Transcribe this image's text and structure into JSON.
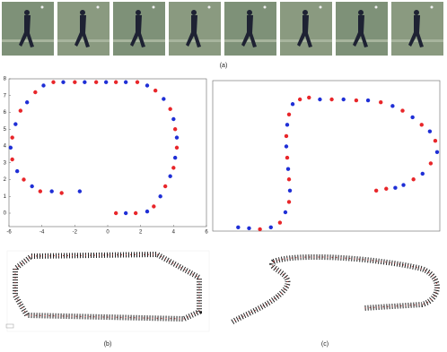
{
  "captions": [
    "(a)",
    "(b)",
    "(c)"
  ],
  "chart_data": [
    {
      "type": "scatter",
      "xlim": [
        -6,
        6
      ],
      "ylim": [
        -0.8,
        8
      ],
      "xticks": [
        -6,
        -4,
        -2,
        0,
        2,
        4,
        6
      ],
      "yticks": [
        0,
        1,
        2,
        3,
        4,
        5,
        6,
        7,
        8
      ],
      "series": [
        {
          "color": "#e8262a",
          "x": [
            0.5,
            1.7,
            2.8,
            3.5,
            4.0,
            4.2,
            4.1,
            3.8,
            2.9,
            1.8,
            0.5,
            -0.7,
            -2,
            -3.3,
            -4.4,
            -5.3,
            -5.8,
            -5.8,
            -5.1,
            -4.1,
            -2.8
          ],
          "y": [
            0,
            0,
            0.4,
            1.6,
            2.7,
            3.9,
            5.0,
            6.2,
            7.3,
            7.8,
            7.8,
            7.8,
            7.8,
            7.8,
            7.2,
            6.1,
            4.5,
            3.2,
            2.0,
            1.3,
            1.2
          ]
        },
        {
          "color": "#1f2fd6",
          "x": [
            1.1,
            2.4,
            3.2,
            3.8,
            4.1,
            4.2,
            4.0,
            3.4,
            2.4,
            1.1,
            -0.1,
            -1.4,
            -2.7,
            -3.9,
            -4.9,
            -5.6,
            -5.9,
            -5.5,
            -4.6,
            -3.4,
            -1.7
          ],
          "y": [
            0,
            0.1,
            1.0,
            2.2,
            3.3,
            4.5,
            5.6,
            6.8,
            7.6,
            7.8,
            7.8,
            7.8,
            7.8,
            7.6,
            6.6,
            5.3,
            3.9,
            2.5,
            1.6,
            1.3,
            1.3
          ]
        }
      ]
    },
    {
      "type": "scatter",
      "xlim": [
        0,
        25
      ],
      "ylim": [
        0,
        16
      ],
      "series": [
        {
          "color": "#e8262a",
          "x": [
            5.2,
            7.4,
            8.4,
            8.4,
            8.2,
            8.1,
            8.4,
            9.6,
            10.6,
            13.1,
            15.8,
            18.5,
            20.9,
            23.0,
            24.5,
            24.0,
            22.1,
            19.1,
            18.0
          ],
          "y": [
            0.2,
            0.9,
            3.1,
            5.5,
            7.8,
            10.1,
            12.4,
            14.0,
            14.2,
            14.0,
            13.9,
            13.7,
            12.8,
            11.3,
            9.6,
            7.2,
            5.5,
            4.5,
            4.3
          ]
        },
        {
          "color": "#1f2fd6",
          "x": [
            2.8,
            4.0,
            6.4,
            8.0,
            8.5,
            8.3,
            8.1,
            8.2,
            8.8,
            11.8,
            14.4,
            17.1,
            19.8,
            22.0,
            23.9,
            24.7,
            23.1,
            21.0,
            20.1
          ],
          "y": [
            0.4,
            0.3,
            0.4,
            2.0,
            4.3,
            6.6,
            9.0,
            11.3,
            13.5,
            14.0,
            14.0,
            13.9,
            13.3,
            12.1,
            10.6,
            8.4,
            6.1,
            4.9,
            4.6
          ]
        }
      ]
    }
  ]
}
